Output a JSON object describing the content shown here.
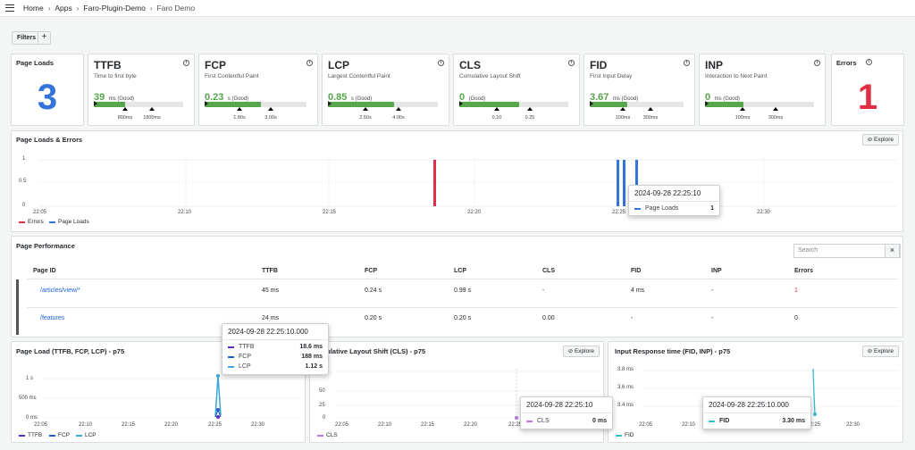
{
  "breadcrumb": {
    "home": "Home",
    "apps": "Apps",
    "plugin": "Faro-Plugin-Demo",
    "current": "Faro Demo"
  },
  "filters": {
    "label": "Filters",
    "add": "+"
  },
  "page_loads": {
    "title": "Page Loads",
    "value": "3",
    "color": "#3274d9"
  },
  "errors": {
    "title": "Errors",
    "value": "1",
    "color": "#e02f44"
  },
  "vitals": [
    {
      "name": "TTFB",
      "desc": "Time to first byte",
      "value": "39",
      "unit": "ms (Good)",
      "fill": 0.35,
      "ticks": [
        "800ms",
        "1800ms"
      ]
    },
    {
      "name": "FCP",
      "desc": "First Contentful Paint",
      "value": "0.23",
      "unit": "s (Good)",
      "fill": 0.55,
      "ticks": [
        "1.80s",
        "3.00s"
      ]
    },
    {
      "name": "LCP",
      "desc": "Largest Contentful Paint",
      "value": "0.85",
      "unit": "s (Good)",
      "fill": 0.6,
      "ticks": [
        "2.50s",
        "4.00s"
      ]
    },
    {
      "name": "CLS",
      "desc": "Cumulative Layout Shift",
      "value": "0",
      "unit": "(Good)",
      "fill": 0.55,
      "ticks": [
        "0.10",
        "0.25"
      ]
    },
    {
      "name": "FID",
      "desc": "First Input Delay",
      "value": "3.67",
      "unit": "ms (Good)",
      "fill": 0.4,
      "ticks": [
        "100ms",
        "300ms"
      ]
    },
    {
      "name": "INP",
      "desc": "Interaction to Next Paint",
      "value": "0",
      "unit": "ms (Good)",
      "fill": 0.35,
      "ticks": [
        "100ms",
        "300ms"
      ]
    }
  ],
  "loads_errors": {
    "title": "Page Loads & Errors",
    "explore": "Explore",
    "y_ticks": [
      "1",
      "0.5",
      "0"
    ],
    "x_ticks": [
      "22:05",
      "22:10",
      "22:15",
      "22:20",
      "22:25",
      "22:30"
    ],
    "legend": [
      "Errors",
      "Page Loads"
    ],
    "tooltip": {
      "time": "2024-09-28 22:25:10",
      "label": "Page Loads",
      "value": "1"
    }
  },
  "performance": {
    "title": "Page Performance",
    "search_placeholder": "Search",
    "columns": [
      "Page ID",
      "TTFB",
      "FCP",
      "LCP",
      "CLS",
      "FID",
      "INP",
      "Errors"
    ],
    "rows": [
      [
        "/articles/view/*",
        "45 ms",
        "0.24 s",
        "0.99 s",
        "-",
        "4 ms",
        "-",
        "1"
      ],
      [
        "/features",
        "24 ms",
        "0.20 s",
        "0.20 s",
        "0.00",
        "-",
        "-",
        "0"
      ]
    ]
  },
  "page_load_chart": {
    "title": "Page Load (TTFB, FCP, LCP) - p75",
    "y_ticks": [
      "1 s",
      "500 ms",
      "0 ms"
    ],
    "x_ticks": [
      "22:05",
      "22:10",
      "22:15",
      "22:20",
      "22:25",
      "22:30"
    ],
    "legend": [
      "TTFB",
      "FCP",
      "LCP"
    ],
    "tooltip": {
      "time": "2024-09-28 22:25:10.000",
      "rows": [
        [
          "TTFB",
          "18.6 ms"
        ],
        [
          "FCP",
          "188 ms"
        ],
        [
          "LCP",
          "1.12 s"
        ]
      ]
    }
  },
  "cls_chart": {
    "title": "umulative Layout Shift (CLS) - p75",
    "explore": "Explore",
    "y_ticks": [
      "75",
      "50",
      "25",
      "0"
    ],
    "x_ticks": [
      "22:05",
      "22:10",
      "22:15",
      "22:20",
      "22:25"
    ],
    "legend": [
      "CLS"
    ],
    "tooltip": {
      "time": "2024-09-28 22:25:10",
      "label": "CLS",
      "value": "0 ms"
    }
  },
  "input_chart": {
    "title": "Input Response time (FID, INP) - p75",
    "explore": "Explore",
    "y_ticks": [
      "3.8 ms",
      "3.6 ms",
      "3.4 ms"
    ],
    "x_ticks": [
      "22:05",
      "22:10",
      "22:25",
      "22:30"
    ],
    "legend": [
      "FID"
    ],
    "tooltip": {
      "time": "2024-09-28 22:25:10.000",
      "label": "FID",
      "value": "3.30 ms"
    }
  },
  "colors": {
    "errors": "#e02f44",
    "loads": "#3274d9",
    "ttfb": "#5a2fb8",
    "fcp": "#1f60c4",
    "lcp": "#3aa6d9",
    "cls": "#b877d9",
    "fid": "#37bad1"
  }
}
